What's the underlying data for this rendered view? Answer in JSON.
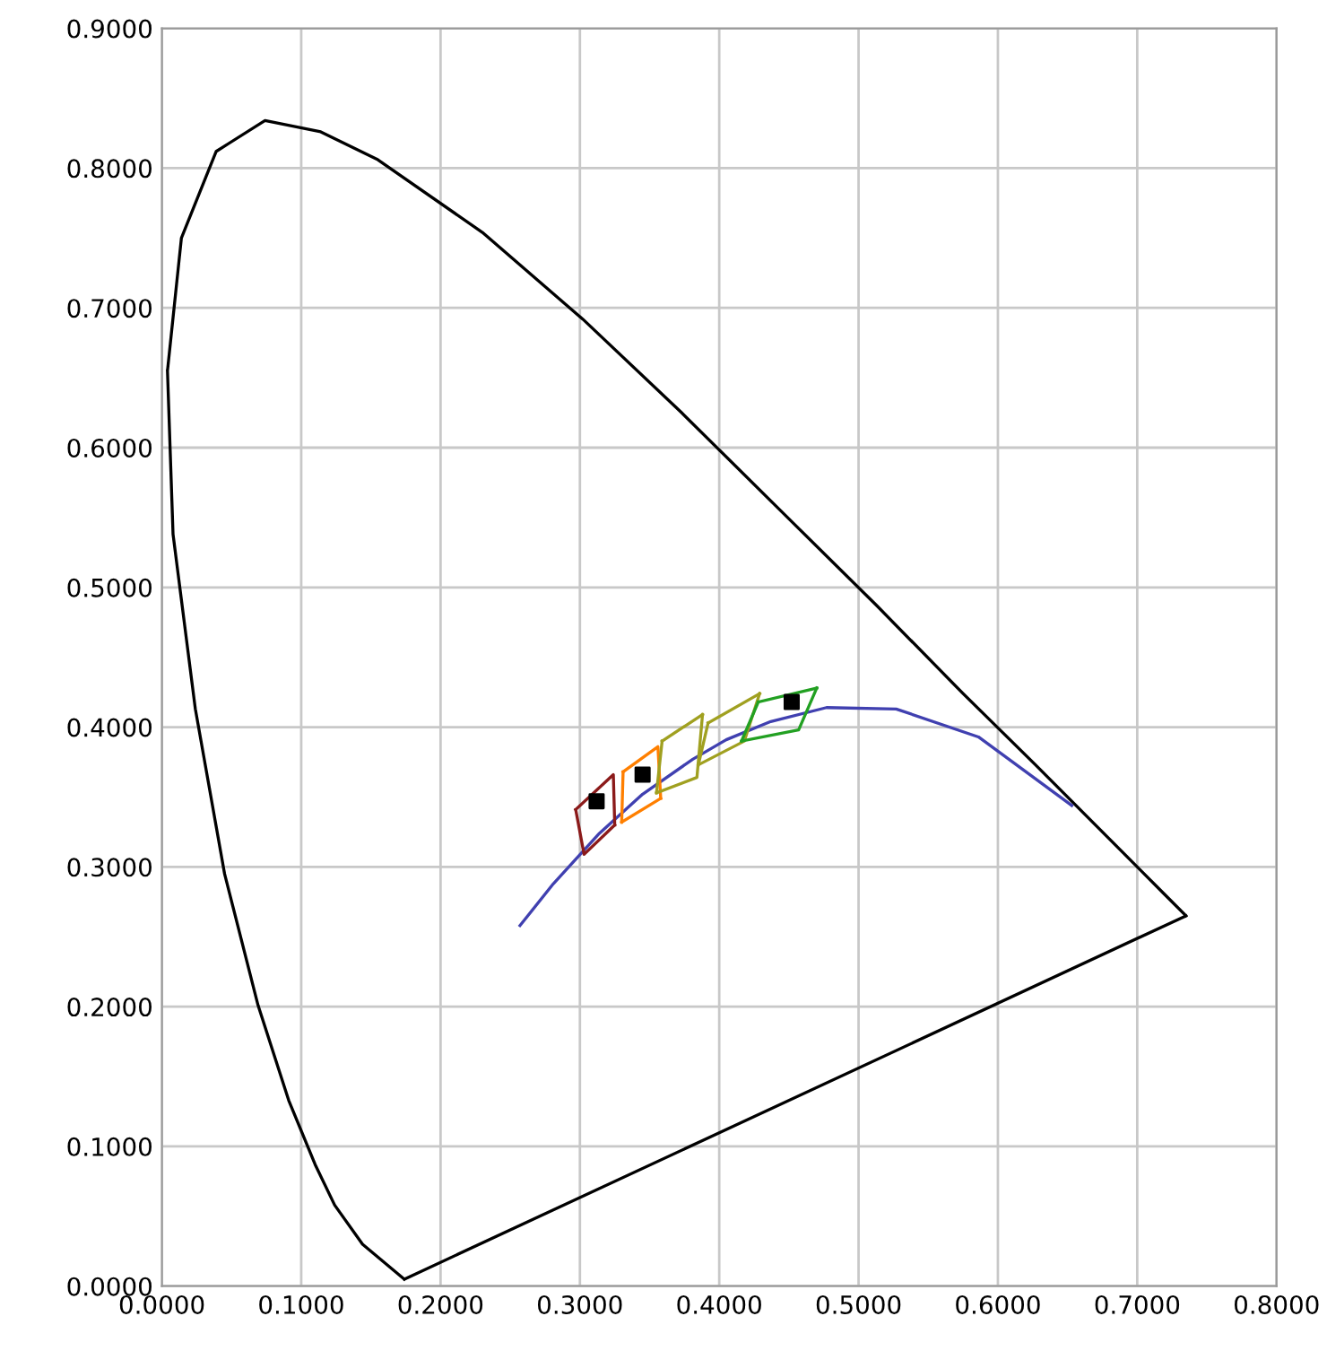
{
  "chart_data": {
    "type": "line",
    "xlim": [
      0,
      0.8
    ],
    "ylim": [
      0,
      0.9
    ],
    "xticks": [
      {
        "value": 0,
        "label": "0.0000"
      },
      {
        "value": 0.1,
        "label": "0.1000"
      },
      {
        "value": 0.2,
        "label": "0.2000"
      },
      {
        "value": 0.3,
        "label": "0.3000"
      },
      {
        "value": 0.4,
        "label": "0.4000"
      },
      {
        "value": 0.5,
        "label": "0.5000"
      },
      {
        "value": 0.6,
        "label": "0.6000"
      },
      {
        "value": 0.7,
        "label": "0.7000"
      },
      {
        "value": 0.8,
        "label": "0.8000"
      }
    ],
    "yticks": [
      {
        "value": 0,
        "label": "0.0000"
      },
      {
        "value": 0.1,
        "label": "0.1000"
      },
      {
        "value": 0.2,
        "label": "0.2000"
      },
      {
        "value": 0.3,
        "label": "0.3000"
      },
      {
        "value": 0.4,
        "label": "0.4000"
      },
      {
        "value": 0.5,
        "label": "0.5000"
      },
      {
        "value": 0.6,
        "label": "0.6000"
      },
      {
        "value": 0.7,
        "label": "0.7000"
      },
      {
        "value": 0.8,
        "label": "0.8000"
      },
      {
        "value": 0.9,
        "label": "0.9000"
      }
    ],
    "grid": true,
    "series": [
      {
        "color": "#000000",
        "x": [
          0.004,
          0.008,
          0.024,
          0.045,
          0.069,
          0.091,
          0.11,
          0.124,
          0.144,
          0.174,
          null,
          0.004,
          0.014,
          0.039,
          0.074,
          0.114,
          0.155,
          0.23,
          0.302,
          0.373,
          0.444,
          0.513,
          0.575,
          0.627,
          0.692,
          0.719,
          0.735,
          null,
          0.174,
          0.735
        ],
        "values": [
          0.655,
          0.538,
          0.413,
          0.295,
          0.201,
          0.133,
          0.087,
          0.058,
          0.03,
          0.005,
          null,
          0.655,
          0.75,
          0.812,
          0.834,
          0.826,
          0.806,
          0.754,
          0.692,
          0.625,
          0.555,
          0.487,
          0.424,
          0.373,
          0.308,
          0.281,
          0.265,
          null,
          0.005,
          0.265
        ]
      },
      {
        "color": "#4040b0",
        "x": [
          0.257,
          0.281,
          0.314,
          0.345,
          0.381,
          0.405,
          0.437,
          0.477,
          0.527,
          0.586,
          0.653
        ],
        "values": [
          0.258,
          0.288,
          0.324,
          0.352,
          0.377,
          0.391,
          0.404,
          0.414,
          0.413,
          0.393,
          0.344
        ]
      },
      {
        "color": "#8b1a1a",
        "x": [
          0.297,
          0.324,
          0.325
        ],
        "values": [
          0.341,
          0.366,
          0.33
        ]
      },
      {
        "color": "#8b1a1a",
        "x": [
          0.297,
          0.303,
          0.325
        ],
        "values": [
          0.341,
          0.309,
          0.33
        ]
      },
      {
        "color": "#ff7f00",
        "x": [
          0.331,
          0.356,
          0.358
        ],
        "values": [
          0.368,
          0.386,
          0.349
        ]
      },
      {
        "color": "#ff7f00",
        "x": [
          0.33,
          0.358
        ],
        "values": [
          0.332,
          0.349
        ]
      },
      {
        "color": "#ff7f00",
        "x": [
          0.33,
          0.331
        ],
        "values": [
          0.332,
          0.368
        ]
      },
      {
        "color": "#a0a020",
        "x": [
          0.359,
          0.388
        ],
        "values": [
          0.39,
          0.409
        ]
      },
      {
        "color": "#a0a020",
        "x": [
          0.355,
          0.384,
          0.388
        ],
        "values": [
          0.353,
          0.364,
          0.409
        ]
      },
      {
        "color": "#a0a020",
        "x": [
          0.355,
          0.359
        ],
        "values": [
          0.353,
          0.39
        ]
      },
      {
        "color": "#a0a020",
        "x": [
          0.392,
          0.429
        ],
        "values": [
          0.403,
          0.424
        ]
      },
      {
        "color": "#a0a020",
        "x": [
          0.385,
          0.418,
          0.429
        ],
        "values": [
          0.373,
          0.39,
          0.424
        ]
      },
      {
        "color": "#a0a020",
        "x": [
          0.385,
          0.392
        ],
        "values": [
          0.373,
          0.403
        ]
      },
      {
        "color": "#22a022",
        "x": [
          0.428,
          0.47
        ],
        "values": [
          0.418,
          0.428
        ]
      },
      {
        "color": "#22a022",
        "x": [
          0.416,
          0.457,
          0.47
        ],
        "values": [
          0.39,
          0.398,
          0.428
        ]
      },
      {
        "color": "#22a022",
        "x": [
          0.416,
          0.428
        ],
        "values": [
          0.39,
          0.418
        ]
      },
      {
        "type": "scatter",
        "color": "#000000",
        "marker": "square",
        "x": [
          0.312,
          0.345,
          0.452
        ],
        "values": [
          0.347,
          0.366,
          0.418
        ]
      }
    ]
  }
}
